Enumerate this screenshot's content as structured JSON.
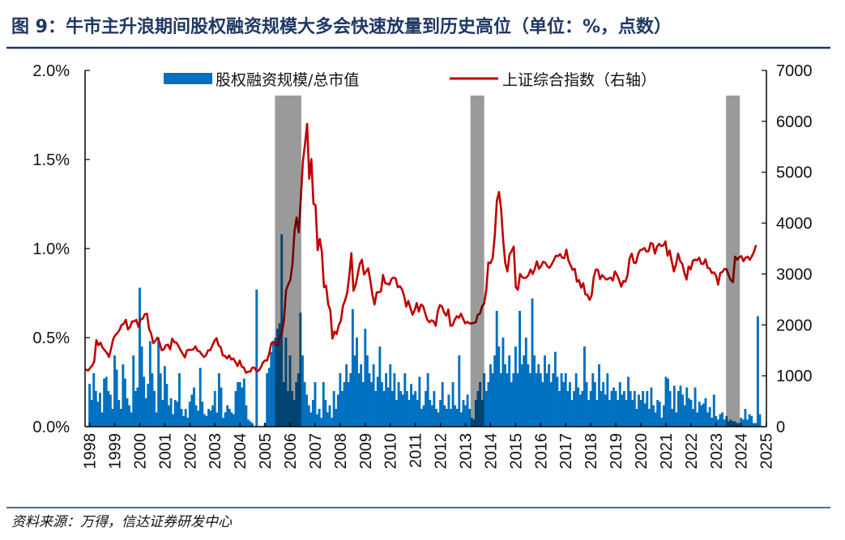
{
  "title": "图 9：牛市主升浪期间股权融资规模大多会快速放量到历史高位（单位：%，点数）",
  "source": "资料来源：万得，信达证券研发中心",
  "colors": {
    "title": "#1f3864",
    "bar": "#0070c0",
    "line": "#c00000",
    "band": "#9a9a9a"
  },
  "chart_data": {
    "type": "bar+line",
    "xlabel": "",
    "ylabel_left": "",
    "ylabel_right": "",
    "x_tick_labels": [
      "1998",
      "1999",
      "2000",
      "2001",
      "2002",
      "2003",
      "2004",
      "2005",
      "2006",
      "2007",
      "2008",
      "2009",
      "2010",
      "2011",
      "2012",
      "2013",
      "2014",
      "2015",
      "2016",
      "2017",
      "2018",
      "2019",
      "2020",
      "2021",
      "2022",
      "2023",
      "2024",
      "2025"
    ],
    "y_left_ticks": [
      "0.0%",
      "0.5%",
      "1.0%",
      "1.5%",
      "2.0%"
    ],
    "y_left_lim": [
      0,
      2.0
    ],
    "y_right_ticks": [
      "0",
      "1000",
      "2000",
      "3000",
      "4000",
      "5000",
      "6000",
      "7000"
    ],
    "y_right_lim": [
      0,
      7000
    ],
    "x_lim": [
      1997.8,
      2025
    ],
    "legend_position": "top",
    "grid": false,
    "shaded_periods": [
      [
        2005.4,
        2006.45
      ],
      [
        2013.2,
        2013.75
      ],
      [
        2023.4,
        2023.95
      ]
    ],
    "series": [
      {
        "name": "股权融资规模/总市值",
        "type": "bar",
        "axis": "left",
        "unit": "%",
        "x_range": [
          1998.0,
          2024.75
        ],
        "values": [
          0.24,
          0.15,
          0.3,
          0.2,
          0.14,
          0.19,
          0.08,
          0.27,
          0.28,
          0.2,
          0.18,
          0.1,
          0.4,
          0.32,
          0.15,
          0.1,
          0.35,
          0.27,
          0.16,
          0.12,
          0.08,
          0.4,
          0.2,
          0.22,
          0.78,
          0.45,
          0.28,
          0.16,
          0.24,
          0.48,
          0.3,
          0.2,
          0.08,
          0.5,
          0.3,
          0.15,
          0.34,
          0.24,
          0.12,
          0.16,
          0.07,
          0.15,
          0.14,
          0.3,
          0.1,
          0.06,
          0.1,
          0.05,
          0.14,
          0.18,
          0.22,
          0.12,
          0.09,
          0.33,
          0.14,
          0.07,
          0.06,
          0.1,
          0.09,
          0.12,
          0.2,
          0.08,
          0.3,
          0.22,
          0.05,
          0.08,
          0.12,
          0.1,
          0.08,
          0.07,
          0.2,
          0.25,
          0.25,
          0.22,
          0.27,
          0.12,
          0.04,
          0.03,
          0.02,
          0.0,
          0.77,
          0.0,
          0.0,
          0.0,
          0.02,
          0.3,
          0.33,
          0.42,
          0.47,
          0.5,
          0.55,
          0.58,
          1.08,
          0.25,
          0.5,
          0.2,
          0.4,
          0.2,
          0.15,
          0.25,
          0.3,
          0.64,
          0.4,
          0.25,
          0.18,
          0.12,
          0.08,
          0.15,
          0.25,
          0.07,
          0.1,
          0.05,
          0.25,
          0.15,
          0.08,
          0.12,
          0.05,
          0.2,
          0.1,
          0.18,
          0.3,
          0.2,
          0.25,
          0.35,
          0.25,
          0.3,
          0.66,
          0.4,
          0.5,
          0.3,
          0.35,
          0.25,
          0.55,
          0.4,
          0.3,
          0.25,
          0.35,
          0.2,
          0.28,
          0.45,
          0.25,
          0.2,
          0.3,
          0.22,
          0.35,
          0.2,
          0.3,
          0.15,
          0.25,
          0.2,
          0.18,
          0.3,
          0.2,
          0.15,
          0.24,
          0.18,
          0.2,
          0.15,
          0.28,
          0.1,
          0.12,
          0.2,
          0.3,
          0.15,
          0.12,
          0.2,
          0.1,
          0.08,
          0.15,
          0.25,
          0.12,
          0.1,
          0.18,
          0.1,
          0.25,
          0.12,
          0.1,
          0.4,
          0.08,
          0.15,
          0.12,
          0.18,
          0.1,
          0.05,
          0.04,
          0.15,
          0.2,
          0.25,
          0.15,
          0.3,
          0.2,
          0.25,
          0.35,
          0.3,
          0.4,
          0.65,
          0.45,
          0.3,
          0.5,
          0.35,
          0.3,
          0.4,
          0.25,
          0.3,
          0.45,
          0.3,
          0.65,
          0.35,
          0.4,
          0.5,
          0.35,
          0.3,
          0.72,
          0.4,
          0.3,
          0.35,
          0.3,
          0.25,
          0.4,
          0.3,
          0.35,
          0.25,
          0.3,
          0.42,
          0.28,
          0.2,
          0.3,
          0.25,
          0.3,
          0.2,
          0.25,
          0.15,
          0.2,
          0.3,
          0.22,
          0.18,
          0.2,
          0.45,
          0.25,
          0.15,
          0.2,
          0.3,
          0.25,
          0.15,
          0.35,
          0.2,
          0.25,
          0.18,
          0.3,
          0.15,
          0.2,
          0.22,
          0.2,
          0.15,
          0.25,
          0.18,
          0.2,
          0.15,
          0.28,
          0.2,
          0.15,
          0.2,
          0.1,
          0.18,
          0.15,
          0.2,
          0.13,
          0.2,
          0.1,
          0.22,
          0.12,
          0.08,
          0.15,
          0.14,
          0.05,
          0.12,
          0.28,
          0.27,
          0.2,
          0.1,
          0.23,
          0.08,
          0.2,
          0.23,
          0.18,
          0.12,
          0.22,
          0.16,
          0.15,
          0.1,
          0.22,
          0.08,
          0.14,
          0.12,
          0.13,
          0.16,
          0.08,
          0.11,
          0.05,
          0.18,
          0.06,
          0.04,
          0.07,
          0.08,
          0.04,
          0.06,
          0.03,
          0.04,
          0.03,
          0.03,
          0.02,
          0.02,
          0.05,
          0.04,
          0.1,
          0.04,
          0.07,
          0.06,
          0.02,
          0.02,
          0.62,
          0.07
        ]
      },
      {
        "name": "上证综合指数（右轴）",
        "type": "line",
        "axis": "right",
        "unit": "点",
        "x_range": [
          1997.85,
          2024.6
        ],
        "values": [
          1130,
          1100,
          1150,
          1200,
          1280,
          1700,
          1600,
          1650,
          1550,
          1500,
          1450,
          1370,
          1530,
          1720,
          1800,
          1840,
          1900,
          2000,
          2020,
          2100,
          1910,
          1960,
          2070,
          2070,
          2100,
          1960,
          2110,
          2120,
          2210,
          2220,
          1920,
          1830,
          1640,
          1690,
          1750,
          1650,
          1500,
          1520,
          1600,
          1610,
          1520,
          1730,
          1660,
          1650,
          1580,
          1500,
          1430,
          1360,
          1500,
          1510,
          1510,
          1520,
          1580,
          1490,
          1480,
          1420,
          1370,
          1400,
          1500,
          1500,
          1590,
          1680,
          1740,
          1600,
          1560,
          1400,
          1390,
          1340,
          1400,
          1320,
          1340,
          1270,
          1190,
          1300,
          1180,
          1160,
          1060,
          1080,
          1080,
          1160,
          1160,
          1090,
          1100,
          1160,
          1260,
          1300,
          1300,
          1440,
          1640,
          1670,
          1610,
          1600,
          1750,
          1840,
          2100,
          2680,
          2790,
          2880,
          3180,
          3840,
          4110,
          3820,
          4470,
          5220,
          5550,
          5950,
          4870,
          5260,
          4380,
          4350,
          3470,
          3690,
          3430,
          2740,
          2770,
          2400,
          2290,
          1730,
          1870,
          1820,
          1990,
          2080,
          2370,
          2480,
          2630,
          2960,
          3410,
          2670,
          2780,
          2990,
          3200,
          3280,
          2990,
          3050,
          3110,
          2870,
          2590,
          2400,
          2640,
          2640,
          2660,
          2980,
          2820,
          2810,
          2790,
          2900,
          2930,
          2910,
          2740,
          2760,
          2700,
          2570,
          2360,
          2470,
          2330,
          2200,
          2290,
          2430,
          2260,
          2400,
          2370,
          2230,
          2100,
          2050,
          2090,
          2070,
          1980,
          2270,
          2390,
          2360,
          2240,
          2180,
          2300,
          1980,
          1990,
          2100,
          2170,
          2140,
          2220,
          2120,
          2030,
          2060,
          2030,
          2030,
          2040,
          2050,
          2200,
          2220,
          2360,
          2420,
          2680,
          3230,
          3210,
          3310,
          3750,
          4440,
          4610,
          4280,
          3660,
          3210,
          3050,
          3380,
          3450,
          3540,
          2740,
          2690,
          3000,
          2940,
          2920,
          2930,
          2980,
          3090,
          3000,
          3100,
          3250,
          3100,
          3160,
          3240,
          3220,
          3150,
          3120,
          3190,
          3270,
          3360,
          3350,
          3390,
          3320,
          3310,
          3480,
          3260,
          3170,
          3080,
          3100,
          2850,
          2880,
          2730,
          2820,
          2600,
          2590,
          2490,
          2580,
          2940,
          3090,
          3080,
          2900,
          2980,
          2930,
          2890,
          2910,
          2930,
          2870,
          3050,
          2980,
          2880,
          2750,
          2860,
          2850,
          2980,
          3310,
          3400,
          3220,
          3220,
          3390,
          3470,
          3480,
          3510,
          3440,
          3450,
          3610,
          3590,
          3400,
          3540,
          3590,
          3550,
          3560,
          3640,
          3360,
          3460,
          3250,
          3050,
          3190,
          3400,
          3250,
          3200,
          3020,
          2890,
          3150,
          3090,
          3260,
          3280,
          3270,
          3320,
          3200,
          3200,
          3290,
          3120,
          3110,
          3020,
          3030,
          2970,
          2790,
          3020,
          3040,
          3100,
          3090,
          2970,
          2880,
          2840,
          3340,
          3280,
          3330,
          3350,
          3250,
          3320,
          3340,
          3280,
          3350,
          3440,
          3570
        ]
      }
    ]
  }
}
